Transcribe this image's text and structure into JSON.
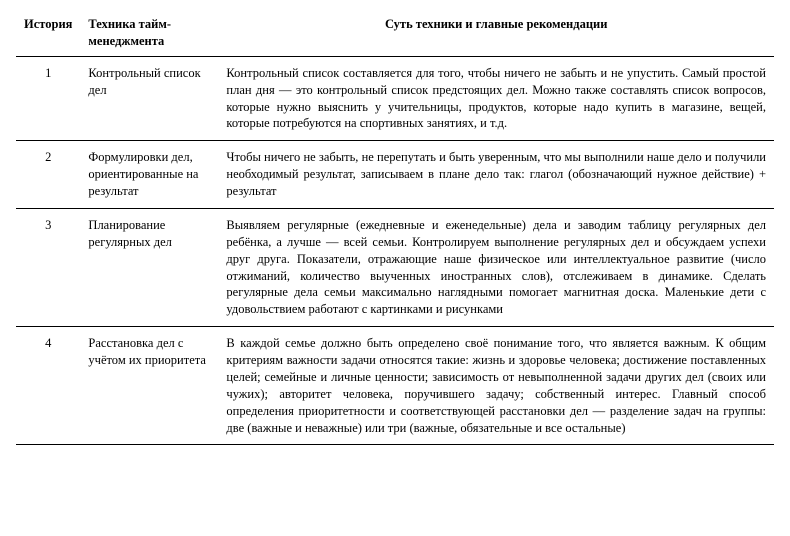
{
  "table": {
    "headers": {
      "history": "История",
      "technique": "Техника тайм-менеджмента",
      "essence": "Суть техники и главные рекомендации"
    },
    "rows": [
      {
        "history": "1",
        "technique": "Контрольный список дел",
        "essence": "Контрольный список составляется для того, чтобы ничего не забыть и не упустить. Самый простой план дня — это контрольный список предстоящих дел. Можно также составлять список вопросов, которые нужно выяснить у учительницы, продуктов, которые надо купить в магазине, вещей, которые потребуются на спортивных занятиях, и т.д."
      },
      {
        "history": "2",
        "technique": "Формулировки дел, ориентированные на результат",
        "essence": "Чтобы ничего не забыть, не перепутать и быть уверенным, что мы выполнили наше дело и получили необходимый результат, записываем в плане дело так: глагол (обозначающий нужное действие) + результат"
      },
      {
        "history": "3",
        "technique": "Планирование регулярных дел",
        "essence": "Выявляем регулярные (ежедневные и еженедельные) дела и заводим таблицу регулярных дел ребёнка, а лучше — всей семьи. Контролируем выполнение регулярных дел и обсуждаем успехи друг друга. Показатели, отражающие наше физическое или интеллектуальное развитие (число отжиманий, количество выученных иностранных слов), отслеживаем в динамике. Сделать регулярные дела семьи максимально наглядными помогает магнитная доска. Маленькие дети с удовольствием работают с картинками и рисунками"
      },
      {
        "history": "4",
        "technique": "Расстановка дел с учётом их приоритета",
        "essence": "В каждой семье должно быть определено своё понимание того, что является важным. К общим критериям важности задачи относятся такие: жизнь и здоровье человека; достижение поставленных целей; семейные и личные ценности; зависимость от невыполненной задачи других дел (своих или чужих); авторитет человека, поручившего задачу; собственный интерес. Главный способ определения приоритетности и соответствующей расстановки дел — разделение задач на группы: две (важные и неважные) или три (важные, обязательные и все остальные)"
      }
    ]
  },
  "colors": {
    "text": "#000000",
    "background": "#ffffff",
    "border": "#000000"
  },
  "typography": {
    "font_family": "Georgia, serif",
    "body_fontsize": 12.5,
    "header_weight": "bold"
  }
}
